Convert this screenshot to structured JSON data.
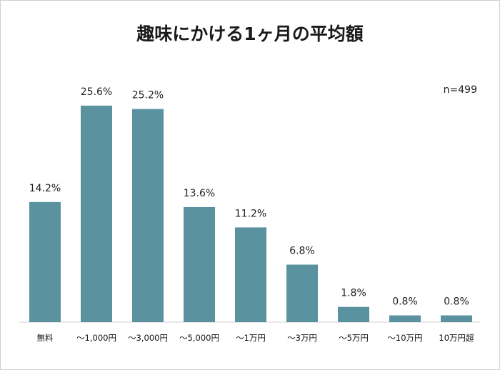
{
  "chart_data": {
    "type": "bar",
    "title": "趣味にかける1ヶ月の平均額",
    "sample": "n=499",
    "categories": [
      "無料",
      "～1,000円",
      "～3,000円",
      "～5,000円",
      "～1万円",
      "～3万円",
      "～5万円",
      "～10万円",
      "10万円超"
    ],
    "values": [
      14.2,
      25.6,
      25.2,
      13.6,
      11.2,
      6.8,
      1.8,
      0.8,
      0.8
    ],
    "value_labels": [
      "14.2%",
      "25.6%",
      "25.2%",
      "13.6%",
      "11.2%",
      "6.8%",
      "1.8%",
      "0.8%",
      "0.8%"
    ],
    "xlabel": "",
    "ylabel": "",
    "ylim": [
      0,
      26
    ],
    "grid": false,
    "legend": "none",
    "bar_color": "#5a939f"
  }
}
